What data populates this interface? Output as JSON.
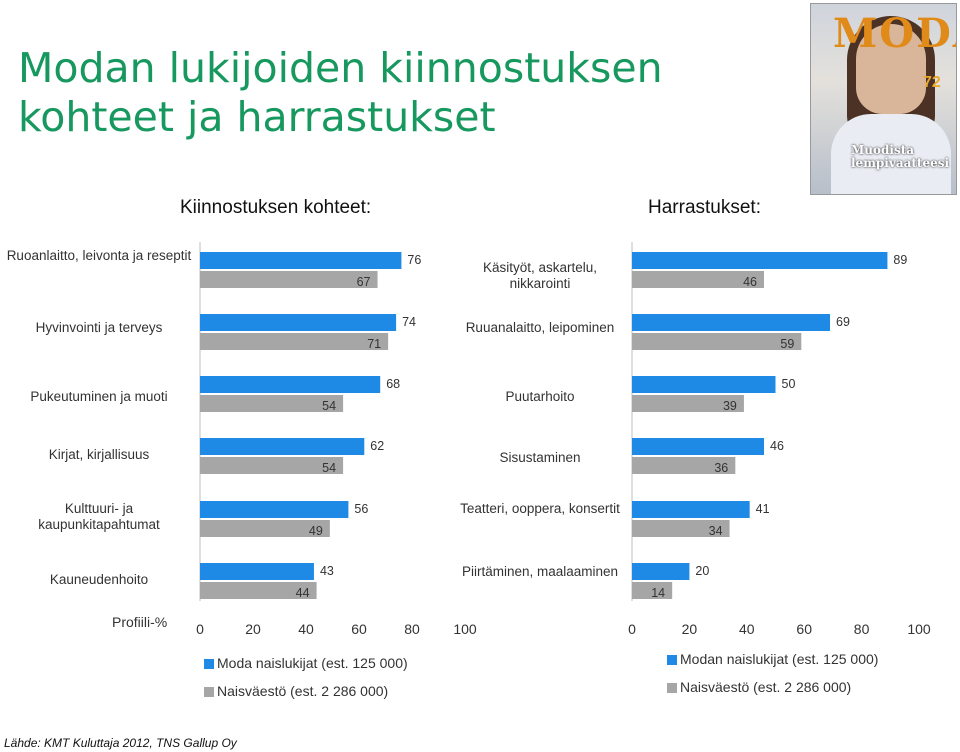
{
  "title": "Modan lukijoiden kiinnostuksen kohteet ja harrastukset",
  "cover": {
    "logo": "MODA",
    "headline": "Muodista lempivaatteesi",
    "badge": "72"
  },
  "left_header": "Kiinnostuksen kohteet:",
  "right_header": "Harrastukset:",
  "profiili_label": "Profiili-%",
  "source": "Lähde: KMT Kuluttaja 2012, TNS Gallup Oy",
  "colors": {
    "series1": "#1e8ae6",
    "series2": "#a6a6a6",
    "title": "#17985f"
  },
  "chart_data": [
    {
      "type": "bar",
      "title": "Kiinnostuksen kohteet:",
      "categories": [
        "Ruoanlaitto, leivonta ja reseptit",
        "Hyvinvointi ja terveys",
        "Pukeutuminen ja muoti",
        "Kirjat, kirjallisuus",
        "Kulttuuri- ja kaupunkitapahtumat",
        "Kauneudenhoito"
      ],
      "series": [
        {
          "name": "Moda naislukijat (est. 125 000)",
          "values": [
            76,
            74,
            68,
            62,
            56,
            43
          ]
        },
        {
          "name": "Naisväestö (est. 2 286 000)",
          "values": [
            67,
            71,
            54,
            54,
            49,
            44
          ]
        }
      ],
      "xlim": [
        0,
        100
      ],
      "xticks": [
        "0",
        "20",
        "40",
        "60",
        "80",
        "100"
      ]
    },
    {
      "type": "bar",
      "title": "Harrastukset:",
      "categories": [
        "Käsityöt, askartelu, nikkarointi",
        "Ruuanalaitto, leipominen",
        "Puutarhoito",
        "Sisustaminen",
        "Teatteri, ooppera, konsertit",
        "Piirtäminen, maalaaminen"
      ],
      "series": [
        {
          "name": "Modan naislukijat (est. 125 000)",
          "values": [
            89,
            69,
            50,
            46,
            41,
            20
          ]
        },
        {
          "name": "Naisväestö (est. 2 286 000)",
          "values": [
            46,
            59,
            39,
            36,
            34,
            14
          ]
        }
      ],
      "xlim": [
        0,
        100
      ],
      "xticks": [
        "0",
        "20",
        "40",
        "60",
        "80",
        "100"
      ]
    }
  ]
}
